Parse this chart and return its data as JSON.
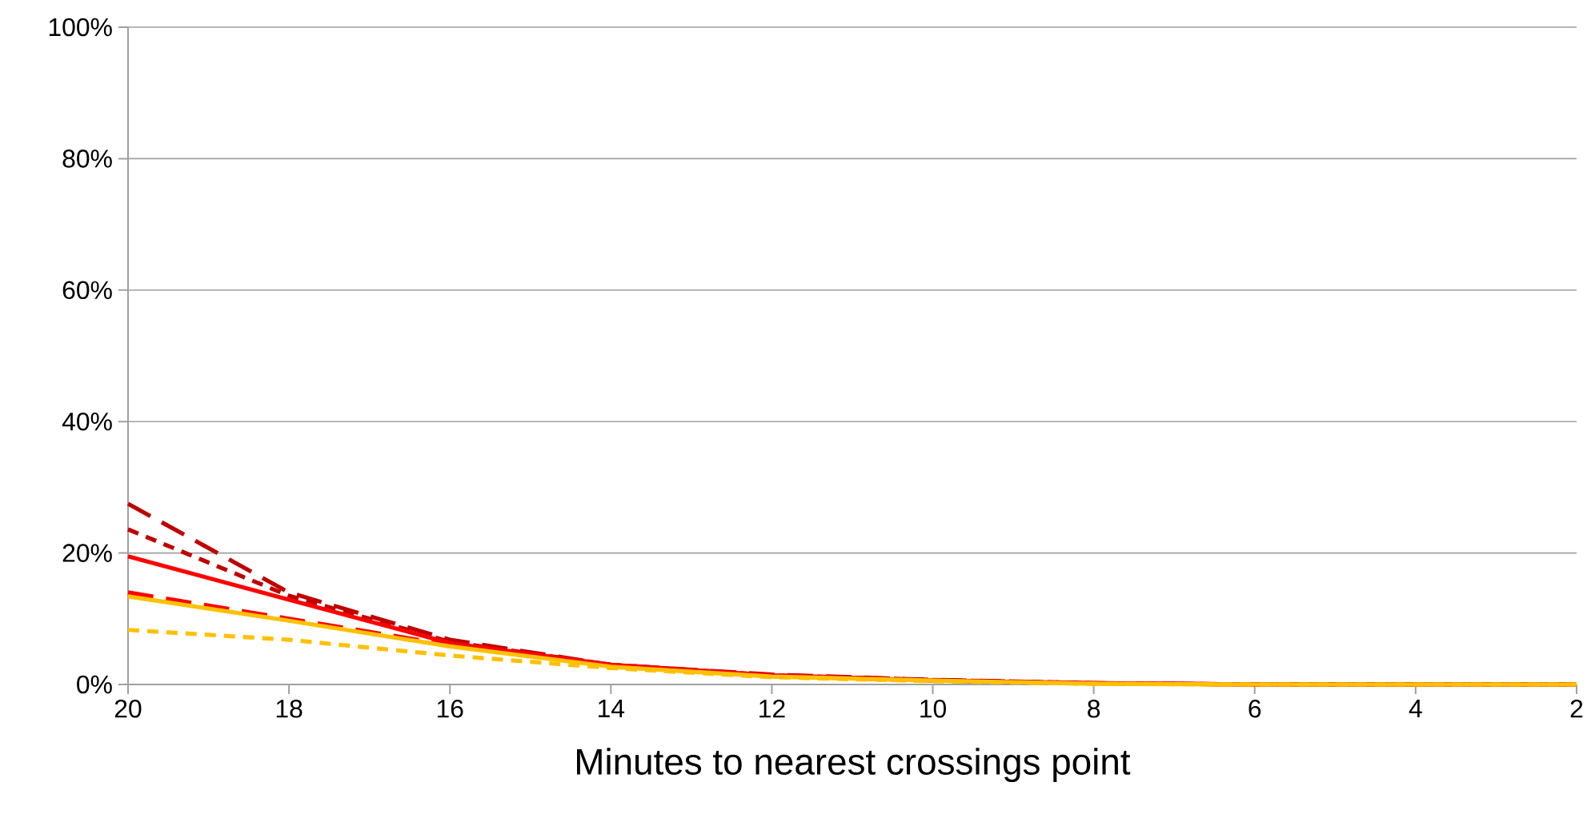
{
  "chart_data": {
    "type": "line",
    "xlabel": "Minutes to nearest crossings point",
    "x": [
      20,
      18,
      16,
      14,
      12,
      10,
      8,
      6,
      4,
      2
    ],
    "xlim": [
      20,
      2
    ],
    "xticks": [
      20,
      18,
      16,
      14,
      12,
      10,
      8,
      6,
      4,
      2
    ],
    "ylim": [
      0,
      100
    ],
    "yticks": [
      {
        "value": 0,
        "label": "0%"
      },
      {
        "value": 20,
        "label": "20%"
      },
      {
        "value": 40,
        "label": "40%"
      },
      {
        "value": 60,
        "label": "60%"
      },
      {
        "value": 80,
        "label": "80%"
      },
      {
        "value": 100,
        "label": "100%"
      }
    ],
    "grid": "y",
    "legend": false,
    "marker": "none",
    "series": [
      {
        "color": "#c00000",
        "line_style": "dashed",
        "values": [
          27.5,
          14,
          6.8,
          3,
          1.5,
          0.7,
          0.2,
          0,
          0,
          0
        ]
      },
      {
        "color": "#c00000",
        "line_style": "dotted",
        "values": [
          23.6,
          13.5,
          6.5,
          3,
          1.4,
          0.7,
          0.2,
          0,
          0,
          0
        ]
      },
      {
        "color": "#ff0000",
        "line_style": "solid",
        "values": [
          19.5,
          12.9,
          6.3,
          3,
          1.4,
          0.6,
          0.2,
          0,
          0,
          0
        ]
      },
      {
        "color": "#ff0000",
        "line_style": "dashed",
        "values": [
          14,
          10,
          6,
          2.8,
          1.3,
          0.6,
          0.2,
          0,
          0,
          0
        ]
      },
      {
        "color": "#ffc000",
        "line_style": "solid",
        "values": [
          13.4,
          9.7,
          5.8,
          2.7,
          1.2,
          0.6,
          0.1,
          0,
          0,
          0
        ]
      },
      {
        "color": "#ffc000",
        "line_style": "dotted",
        "values": [
          8.3,
          6.8,
          4.4,
          2.5,
          1.1,
          0.5,
          0.1,
          0,
          0,
          0
        ]
      }
    ]
  }
}
